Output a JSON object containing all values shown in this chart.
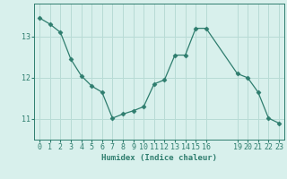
{
  "x": [
    0,
    1,
    2,
    3,
    4,
    5,
    6,
    7,
    8,
    9,
    10,
    11,
    12,
    13,
    14,
    15,
    16,
    19,
    20,
    21,
    22,
    23
  ],
  "y": [
    13.45,
    13.3,
    13.1,
    12.45,
    12.05,
    11.8,
    11.65,
    11.02,
    11.12,
    11.2,
    11.3,
    11.85,
    11.95,
    12.55,
    12.55,
    13.2,
    13.2,
    12.1,
    12.0,
    11.65,
    11.02,
    10.9
  ],
  "line_color": "#2e7d6e",
  "marker": "D",
  "marker_size": 2.5,
  "bg_color": "#d8f0ec",
  "grid_color": "#b8dbd5",
  "axis_color": "#2e7d6e",
  "xlabel": "Humidex (Indice chaleur)",
  "xticks": [
    0,
    1,
    2,
    3,
    4,
    5,
    6,
    7,
    8,
    9,
    10,
    11,
    12,
    13,
    14,
    15,
    16,
    19,
    20,
    21,
    22,
    23
  ],
  "yticks": [
    11,
    12,
    13
  ],
  "ylim": [
    10.5,
    13.8
  ],
  "xlim": [
    -0.5,
    23.5
  ],
  "label_fontsize": 6.5,
  "tick_fontsize": 6.0
}
